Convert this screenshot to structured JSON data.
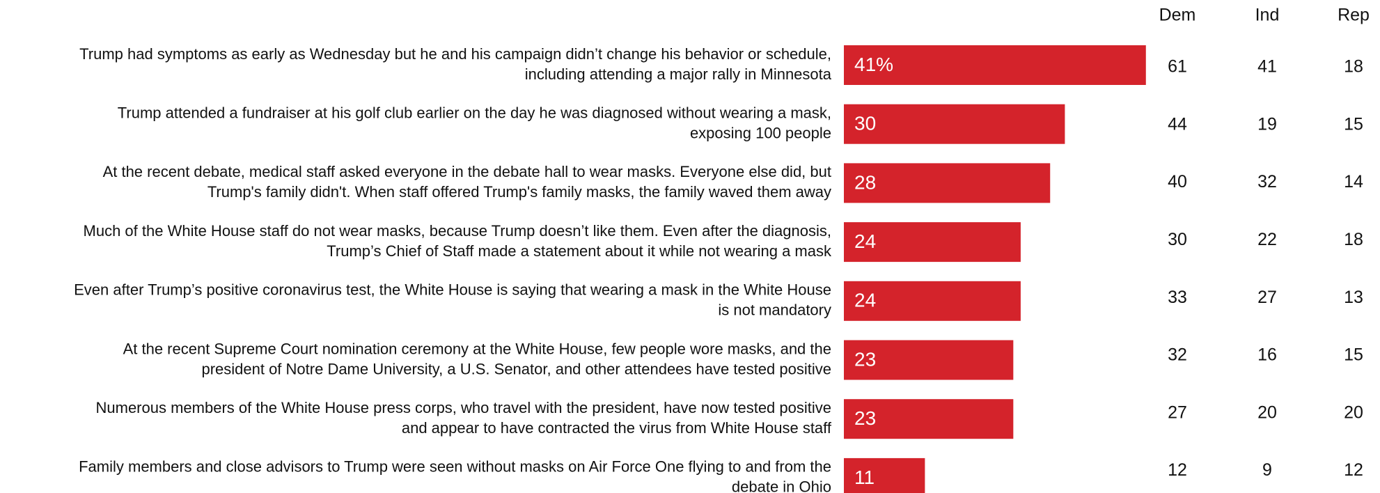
{
  "chart_data": {
    "type": "bar",
    "orientation": "horizontal",
    "categories": [
      [
        "Trump had symptoms as early as Wednesday but he and his campaign didn’t change his behavior or schedule,",
        "including attending a major rally in Minnesota"
      ],
      [
        "Trump attended a fundraiser at his golf club earlier on the day he was diagnosed without wearing a mask,",
        "exposing 100 people"
      ],
      [
        "At the recent debate, medical staff asked everyone in the debate hall to wear masks. Everyone else did, but",
        "Trump's family didn't. When staff offered Trump's family masks, the family waved them away"
      ],
      [
        "Much of the White House staff do not wear masks, because Trump doesn’t like them. Even after the diagnosis,",
        "Trump’s Chief of Staff made a statement about it while not wearing a mask"
      ],
      [
        "Even after Trump’s positive coronavirus test, the White House is saying that wearing a mask in the White House",
        "is not mandatory"
      ],
      [
        "At the recent Supreme Court nomination ceremony at the White House, few people wore masks, and the",
        "president of Notre Dame University, a U.S. Senator, and other attendees have tested positive"
      ],
      [
        "Numerous members of the White House press corps, who travel with the president, have now tested positive",
        "and appear to have contracted the virus from White House staff"
      ],
      [
        "Family members and close advisors to Trump were seen without masks on Air Force One flying to and from the",
        "debate in Ohio"
      ]
    ],
    "values": [
      41,
      30,
      28,
      24,
      24,
      23,
      23,
      11
    ],
    "value_labels": [
      "41%",
      "30",
      "28",
      "24",
      "24",
      "23",
      "23",
      "11"
    ],
    "color": "#d4232b",
    "xlim": [
      0,
      100
    ],
    "table": {
      "columns": [
        "Dem",
        "Ind",
        "Rep"
      ],
      "rows": [
        [
          61,
          41,
          18
        ],
        [
          44,
          19,
          15
        ],
        [
          40,
          32,
          14
        ],
        [
          30,
          22,
          18
        ],
        [
          33,
          27,
          13
        ],
        [
          32,
          16,
          15
        ],
        [
          27,
          20,
          20
        ],
        [
          12,
          9,
          12
        ]
      ]
    }
  }
}
